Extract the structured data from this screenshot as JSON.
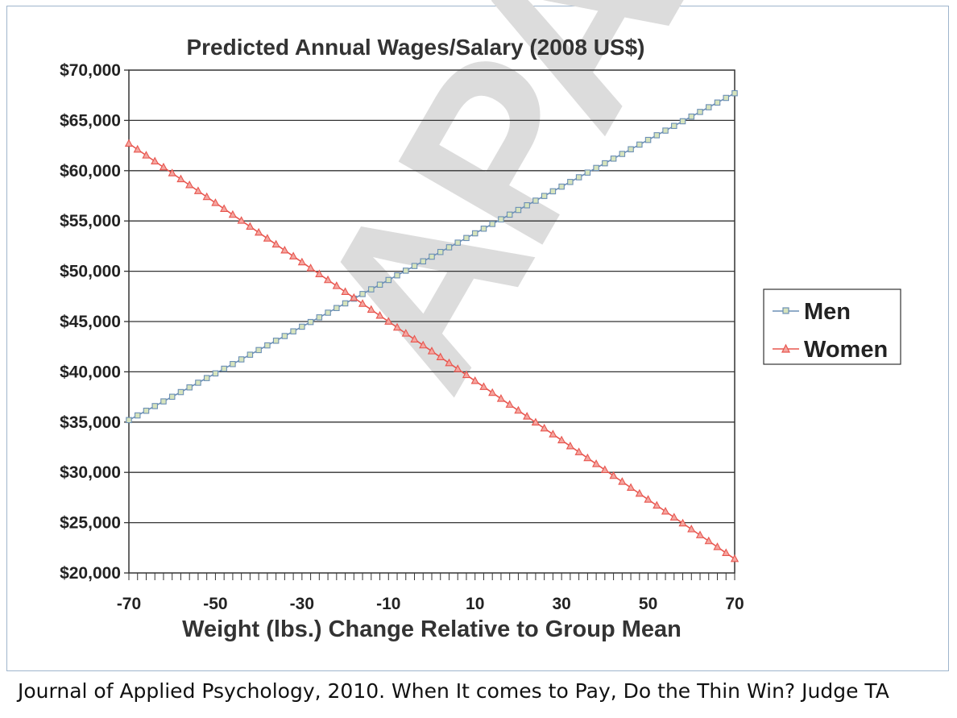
{
  "chart_data": {
    "type": "line",
    "title": "Predicted Annual Wages/Salary (2008 US$)",
    "xlabel": "Weight (lbs.) Change Relative to Group Mean",
    "ylabel": "",
    "xlim": [
      -70,
      70
    ],
    "ylim": [
      20000,
      70000
    ],
    "x_ticks": [
      -70,
      -50,
      -30,
      -10,
      10,
      30,
      50,
      70
    ],
    "x_tick_labels": [
      "-70",
      "-50",
      "-30",
      "-10",
      "10",
      "30",
      "50",
      "70"
    ],
    "y_ticks": [
      20000,
      25000,
      30000,
      35000,
      40000,
      45000,
      50000,
      55000,
      60000,
      65000,
      70000
    ],
    "y_tick_labels": [
      "$20,000",
      "$25,000",
      "$30,000",
      "$35,000",
      "$40,000",
      "$45,000",
      "$50,000",
      "$55,000",
      "$60,000",
      "$65,000",
      "$70,000"
    ],
    "grid": "horizontal",
    "legend_position": "right",
    "series": [
      {
        "name": "Men",
        "color": "#6b8fb5",
        "marker": "square",
        "marker_fill": "#d7e4bd",
        "x": [
          -70,
          70
        ],
        "y": [
          35200,
          67700
        ]
      },
      {
        "name": "Women",
        "color": "#e8564f",
        "marker": "triangle",
        "marker_fill": "#f4a6a0",
        "x": [
          -70,
          70
        ],
        "y": [
          62700,
          21400
        ]
      }
    ]
  },
  "watermark": "APA",
  "caption": "Journal of Applied Psychology, 2010. When It comes to Pay, Do the Thin Win? Judge TA"
}
